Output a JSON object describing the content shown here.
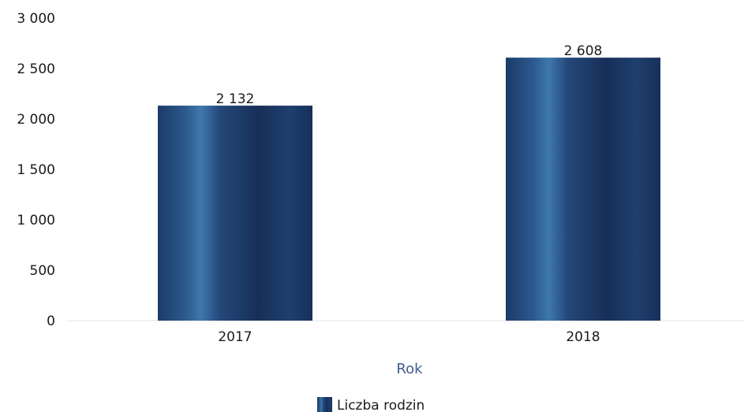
{
  "chart_data": {
    "type": "bar",
    "categories": [
      "2017",
      "2018"
    ],
    "series": [
      {
        "name": "Liczba rodzin",
        "values": [
          2132,
          2608
        ],
        "data_labels": [
          "2 132",
          "2 608"
        ]
      }
    ],
    "ylim": [
      0,
      3000
    ],
    "yticks": [
      0,
      500,
      1000,
      1500,
      2000,
      2500,
      3000
    ],
    "ytick_labels": [
      "0",
      "500",
      "1 000",
      "1 500",
      "2 000",
      "2 500",
      "3 000"
    ],
    "xlabel": "Rok",
    "ylabel": "",
    "title": "",
    "legend_position": "bottom-center",
    "bar_color": "#1d3f6e",
    "grid": false
  }
}
